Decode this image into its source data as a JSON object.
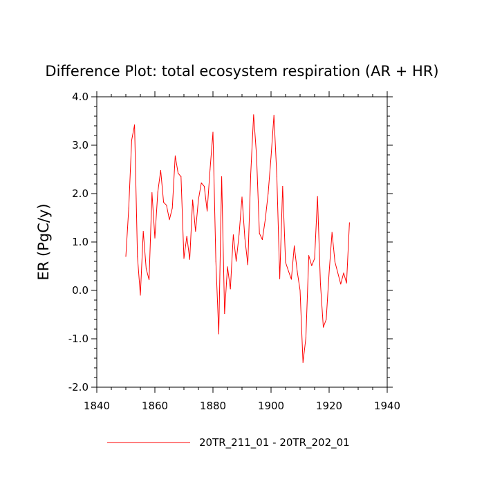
{
  "chart_data": {
    "type": "line",
    "title": "Difference Plot: total ecosystem respiration (AR + HR)",
    "xlabel": "",
    "ylabel": "ER  (PgC/y)",
    "xlim": [
      1840,
      1940
    ],
    "ylim": [
      -2.0,
      4.0
    ],
    "x_ticks": [
      1840,
      1860,
      1880,
      1900,
      1920,
      1940
    ],
    "x_tick_labels": [
      "1840",
      "1860",
      "1880",
      "1900",
      "1920",
      "1940"
    ],
    "y_ticks": [
      -2.0,
      -1.0,
      0.0,
      1.0,
      2.0,
      3.0,
      4.0
    ],
    "y_tick_labels": [
      "-2.0",
      "-1.0",
      "0.0",
      "1.0",
      "2.0",
      "3.0",
      "4.0"
    ],
    "legend_position": "bottom-center",
    "series": [
      {
        "name": "20TR_211_01 - 20TR_202_01",
        "color": "#ff0000",
        "x": [
          1850,
          1851,
          1852,
          1853,
          1854,
          1855,
          1856,
          1857,
          1858,
          1859,
          1860,
          1861,
          1862,
          1863,
          1864,
          1865,
          1866,
          1867,
          1868,
          1869,
          1870,
          1871,
          1872,
          1873,
          1874,
          1875,
          1876,
          1877,
          1878,
          1879,
          1880,
          1881,
          1882,
          1883,
          1884,
          1885,
          1886,
          1887,
          1888,
          1889,
          1890,
          1891,
          1892,
          1893,
          1894,
          1895,
          1896,
          1897,
          1898,
          1899,
          1900,
          1901,
          1902,
          1903,
          1904,
          1905,
          1906,
          1907,
          1908,
          1909,
          1910,
          1911,
          1912,
          1913,
          1914,
          1915,
          1916,
          1917,
          1918,
          1919,
          1920,
          1921,
          1922,
          1923,
          1924,
          1925,
          1926,
          1927
        ],
        "values": [
          0.7,
          1.7,
          3.1,
          3.42,
          0.7,
          -0.1,
          1.22,
          0.45,
          0.22,
          2.02,
          1.08,
          2.03,
          2.48,
          1.82,
          1.76,
          1.46,
          1.7,
          2.78,
          2.42,
          2.35,
          0.66,
          1.12,
          0.64,
          1.87,
          1.22,
          1.88,
          2.22,
          2.15,
          1.64,
          2.5,
          3.27,
          0.6,
          -0.9,
          2.35,
          -0.48,
          0.49,
          0.03,
          1.15,
          0.6,
          1.16,
          1.93,
          1.07,
          0.53,
          2.4,
          3.63,
          2.79,
          1.18,
          1.05,
          1.46,
          2.0,
          2.76,
          3.62,
          2.35,
          0.24,
          2.15,
          0.58,
          0.4,
          0.23,
          0.92,
          0.4,
          0.0,
          -1.49,
          -0.98,
          0.72,
          0.51,
          0.66,
          1.94,
          0.15,
          -0.76,
          -0.6,
          0.37,
          1.2,
          0.59,
          0.36,
          0.13,
          0.36,
          0.15,
          1.4
        ]
      }
    ]
  }
}
